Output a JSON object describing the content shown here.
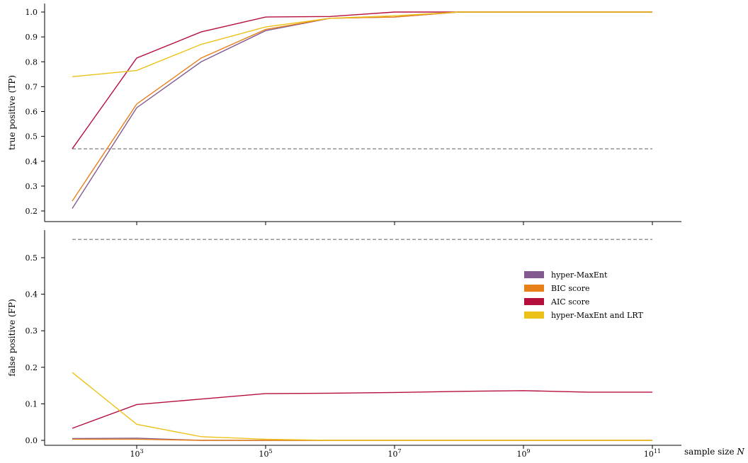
{
  "chart_data": [
    {
      "type": "line",
      "ylabel": "true positive (TP)",
      "xlabel": "",
      "x_scale": "log",
      "x": [
        100,
        1000,
        10000,
        100000,
        1000000,
        10000000,
        100000000,
        1000000000,
        10000000000,
        100000000000
      ],
      "ylim": [
        0.18,
        1.02
      ],
      "yticks": [
        "0.2",
        "0.3",
        "0.4",
        "0.5",
        "0.6",
        "0.7",
        "0.8",
        "0.9",
        "1.0"
      ],
      "reference_line": 0.45,
      "series": [
        {
          "name": "hyper-MaxEnt",
          "color": "#835a90",
          "values": [
            0.21,
            0.615,
            0.8,
            0.925,
            0.975,
            0.98,
            1.0,
            1.0,
            1.0,
            1.0
          ]
        },
        {
          "name": "BIC score",
          "color": "#e8801a",
          "values": [
            0.24,
            0.63,
            0.815,
            0.93,
            0.975,
            0.98,
            1.0,
            1.0,
            1.0,
            1.0
          ]
        },
        {
          "name": "AIC score",
          "color": "#b5103d",
          "values": [
            0.45,
            0.815,
            0.92,
            0.98,
            0.982,
            1.0,
            1.0,
            1.0,
            1.0,
            1.0
          ]
        },
        {
          "name": "hyper-MaxEnt and LRT",
          "color": "#ecc21a",
          "values": [
            0.74,
            0.765,
            0.87,
            0.94,
            0.975,
            0.985,
            1.0,
            1.0,
            1.0,
            1.0
          ]
        }
      ]
    },
    {
      "type": "line",
      "ylabel": "false positive (FP)",
      "xlabel": "sample size N",
      "x_scale": "log",
      "x": [
        100,
        1000,
        10000,
        100000,
        1000000,
        10000000,
        100000000,
        1000000000,
        10000000000,
        100000000000
      ],
      "xticks": [
        {
          "value": 1000,
          "base": "10",
          "exp": "3"
        },
        {
          "value": 100000,
          "base": "10",
          "exp": "5"
        },
        {
          "value": 10000000,
          "base": "10",
          "exp": "7"
        },
        {
          "value": 1000000000,
          "base": "10",
          "exp": "9"
        },
        {
          "value": 100000000000,
          "base": "10",
          "exp": "11"
        }
      ],
      "ylim": [
        -0.015,
        0.575
      ],
      "yticks": [
        "0.0",
        "0.1",
        "0.2",
        "0.3",
        "0.4",
        "0.5"
      ],
      "reference_line": 0.55,
      "legend_position": "right",
      "series": [
        {
          "name": "hyper-MaxEnt",
          "color": "#835a90",
          "values": [
            0.005,
            0.006,
            0.0,
            0.0,
            0.0,
            0.0,
            0.0,
            0.0,
            0.0,
            0.0
          ]
        },
        {
          "name": "BIC score",
          "color": "#e8801a",
          "values": [
            0.003,
            0.003,
            0.0,
            0.0,
            0.0,
            0.0,
            0.0,
            0.0,
            0.0,
            0.0
          ]
        },
        {
          "name": "AIC score",
          "color": "#b5103d",
          "values": [
            0.033,
            0.098,
            0.113,
            0.128,
            0.129,
            0.131,
            0.134,
            0.136,
            0.132,
            0.132
          ]
        },
        {
          "name": "hyper-MaxEnt and LRT",
          "color": "#ecc21a",
          "values": [
            0.186,
            0.044,
            0.01,
            0.003,
            0.0,
            0.0,
            0.0,
            0.0,
            0.0,
            0.0
          ]
        }
      ]
    }
  ]
}
